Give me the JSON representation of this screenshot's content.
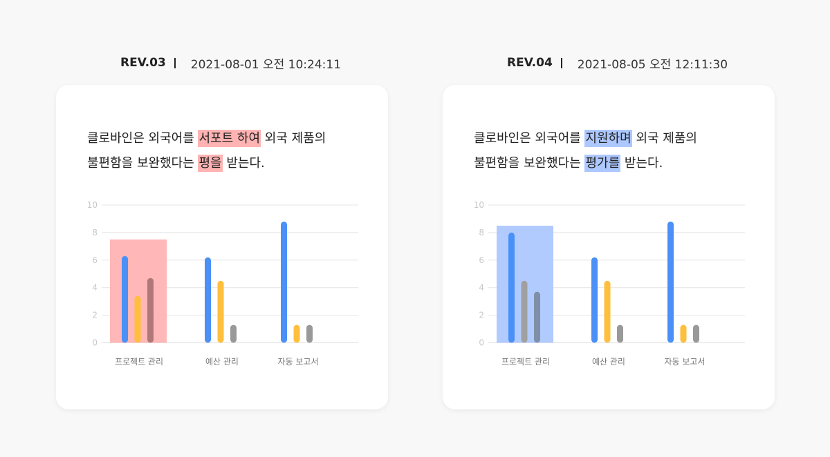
{
  "panels": [
    {
      "rev": "REV.03",
      "timestamp": "2021-08-01 오전 10:24:11",
      "sentence": {
        "line1_pre": "클로바인은 외국어를 ",
        "line1_hl": "서포트 하여",
        "line1_post": " 외국 제품의",
        "line2_pre": "불편함을 보완했다는 ",
        "line2_hl": "평을",
        "line2_post": " 받는다."
      },
      "highlight_color": "#ffb3b3"
    },
    {
      "rev": "REV.04",
      "timestamp": "2021-08-05 오전 12:11:30",
      "sentence": {
        "line1_pre": "클로바인은 외국어를 ",
        "line1_hl": "지원하며",
        "line1_post": " 외국 제품의",
        "line2_pre": "불편함을 보완했다는 ",
        "line2_hl": "평가를",
        "line2_post": " 받는다."
      },
      "highlight_color": "#adc8ff"
    }
  ],
  "chart_data": [
    {
      "type": "bar",
      "categories": [
        "프로젝트 관리",
        "예산 관리",
        "자동 보고서"
      ],
      "ylim": [
        0,
        10
      ],
      "yticks": [
        0,
        2,
        4,
        6,
        8,
        10
      ],
      "series": [
        {
          "values": [
            6.3,
            6.2,
            8.8
          ],
          "colors": [
            "#4a90f7",
            "#4a90f7",
            "#4a90f7"
          ]
        },
        {
          "values": [
            3.4,
            4.5,
            1.3
          ],
          "colors": [
            "#ffbf3c",
            "#ffbf3c",
            "#ffbf3c"
          ]
        },
        {
          "values": [
            4.7,
            1.3,
            1.3
          ],
          "colors": [
            "#b07878",
            "#999999",
            "#999999"
          ]
        }
      ],
      "highlight": {
        "category_index": 0,
        "value": 7.5,
        "color": "#ffb3b3"
      },
      "grid": true
    },
    {
      "type": "bar",
      "categories": [
        "프로젝트 관리",
        "예산 관리",
        "자동 보고서"
      ],
      "ylim": [
        0,
        10
      ],
      "yticks": [
        0,
        2,
        4,
        6,
        8,
        10
      ],
      "series": [
        {
          "values": [
            8.0,
            6.2,
            8.8
          ],
          "colors": [
            "#4a90f7",
            "#4a90f7",
            "#4a90f7"
          ]
        },
        {
          "values": [
            4.5,
            4.5,
            1.3
          ],
          "colors": [
            "#a0a0a0",
            "#ffbf3c",
            "#ffbf3c"
          ]
        },
        {
          "values": [
            3.7,
            1.3,
            1.3
          ],
          "colors": [
            "#7f8fa8",
            "#999999",
            "#999999"
          ]
        }
      ],
      "highlight": {
        "category_index": 0,
        "value": 8.5,
        "color": "#adc8ff"
      },
      "grid": true
    }
  ]
}
